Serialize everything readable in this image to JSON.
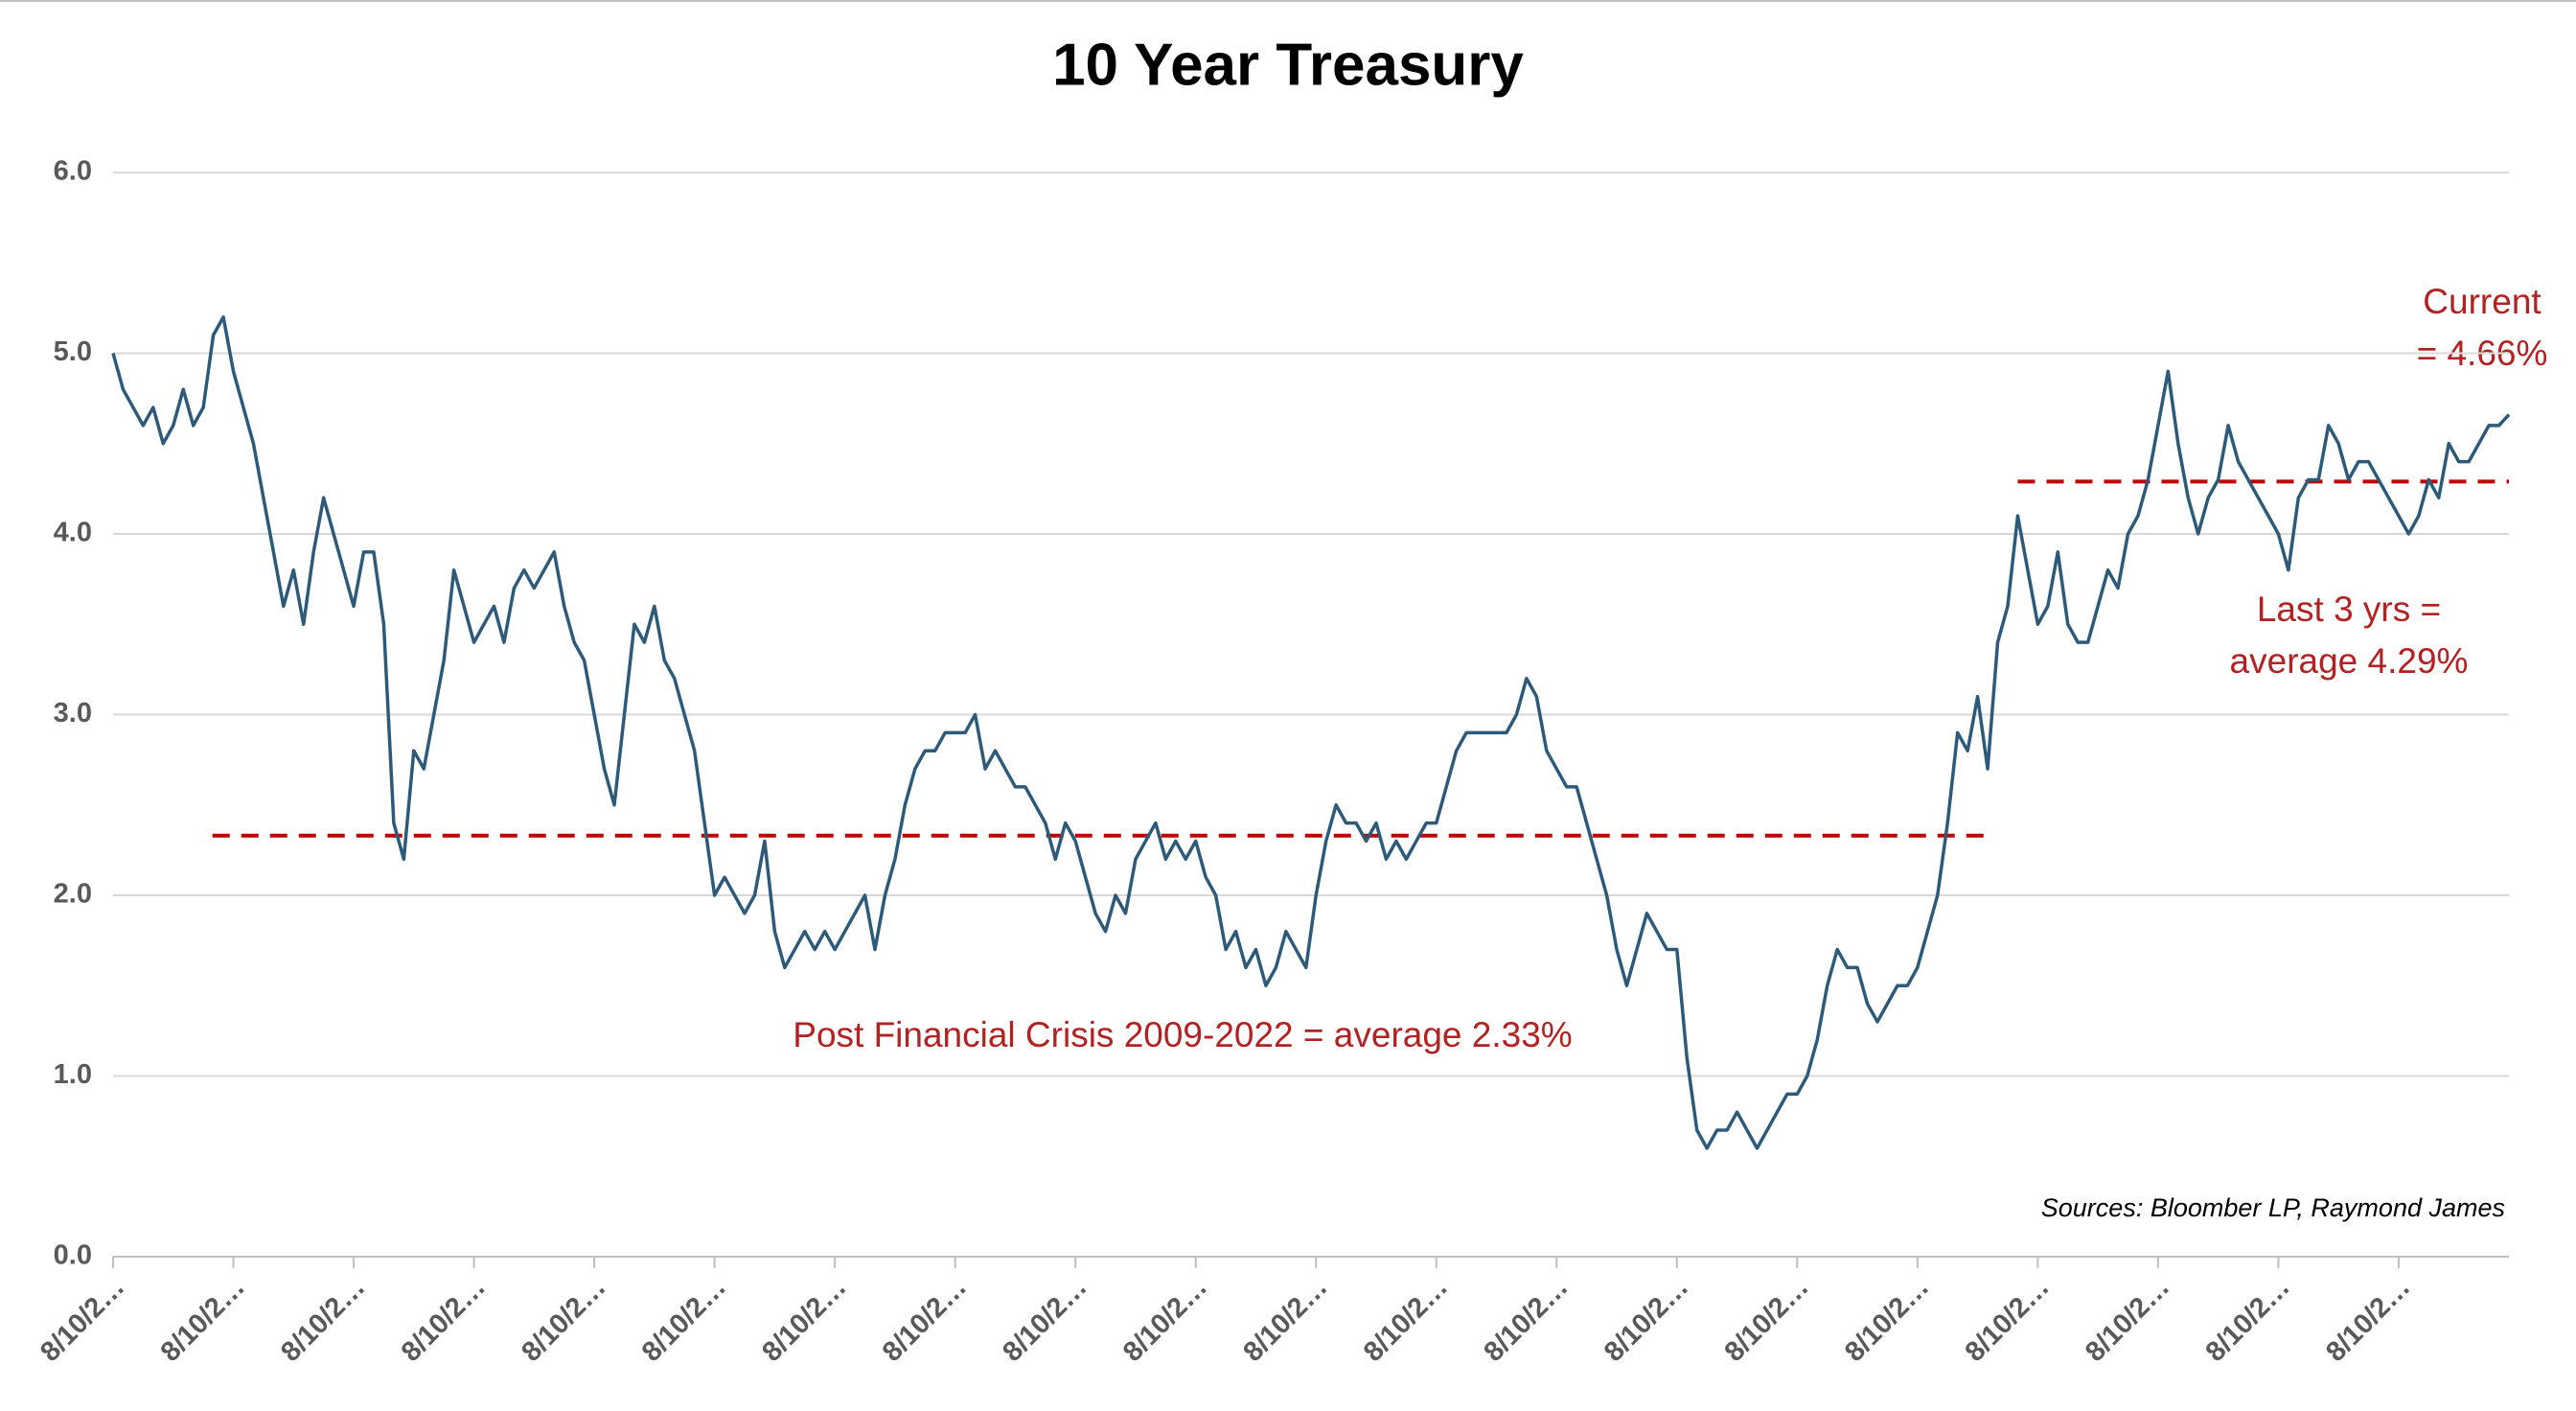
{
  "chart_data": {
    "type": "line",
    "title": "10 Year Treasury",
    "categories": [
      "8/10/2…",
      null,
      null,
      null,
      null,
      null,
      null,
      null,
      null,
      null,
      null,
      null,
      "8/10/2…",
      null,
      null,
      null,
      null,
      null,
      null,
      null,
      null,
      null,
      null,
      null,
      "8/10/2…",
      null,
      null,
      null,
      null,
      null,
      null,
      null,
      null,
      null,
      null,
      null,
      "8/10/2…",
      null,
      null,
      null,
      null,
      null,
      null,
      null,
      null,
      null,
      null,
      null,
      "8/10/2…",
      null,
      null,
      null,
      null,
      null,
      null,
      null,
      null,
      null,
      null,
      null,
      "8/10/2…",
      null,
      null,
      null,
      null,
      null,
      null,
      null,
      null,
      null,
      null,
      null,
      "8/10/2…",
      null,
      null,
      null,
      null,
      null,
      null,
      null,
      null,
      null,
      null,
      null,
      "8/10/2…",
      null,
      null,
      null,
      null,
      null,
      null,
      null,
      null,
      null,
      null,
      null,
      "8/10/2…",
      null,
      null,
      null,
      null,
      null,
      null,
      null,
      null,
      null,
      null,
      null,
      "8/10/2…",
      null,
      null,
      null,
      null,
      null,
      null,
      null,
      null,
      null,
      null,
      null,
      "8/10/2…",
      null,
      null,
      null,
      null,
      null,
      null,
      null,
      null,
      null,
      null,
      null,
      "8/10/2…",
      null,
      null,
      null,
      null,
      null,
      null,
      null,
      null,
      null,
      null,
      null,
      "8/10/2…",
      null,
      null,
      null,
      null,
      null,
      null,
      null,
      null,
      null,
      null,
      null,
      "8/10/2…",
      null,
      null,
      null,
      null,
      null,
      null,
      null,
      null,
      null,
      null,
      null,
      "8/10/2…",
      null,
      null,
      null,
      null,
      null,
      null,
      null,
      null,
      null,
      null,
      null,
      "8/10/2…",
      null,
      null,
      null,
      null,
      null,
      null,
      null,
      null,
      null,
      null,
      null,
      "8/10/2…",
      null,
      null,
      null,
      null,
      null,
      null,
      null,
      null,
      null,
      null,
      null,
      "8/10/2…",
      null,
      null,
      null,
      null,
      null,
      null,
      null,
      null,
      null,
      null,
      null,
      "8/10/2…",
      null,
      null,
      null,
      null,
      null,
      null,
      null,
      null,
      null,
      null,
      null,
      "8/10/2…",
      null,
      null,
      null,
      null,
      null,
      null,
      null,
      null,
      null,
      null,
      null
    ],
    "series": [
      {
        "name": "10 Year Treasury",
        "color": "#2e5a7a",
        "values": [
          5.0,
          4.8,
          4.7,
          4.6,
          4.7,
          4.5,
          4.6,
          4.8,
          4.6,
          4.7,
          5.1,
          5.2,
          4.9,
          4.7,
          4.5,
          4.2,
          3.9,
          3.6,
          3.8,
          3.5,
          3.9,
          4.2,
          4.0,
          3.8,
          3.6,
          3.9,
          3.9,
          3.5,
          2.4,
          2.2,
          2.8,
          2.7,
          3.0,
          3.3,
          3.8,
          3.6,
          3.4,
          3.5,
          3.6,
          3.4,
          3.7,
          3.8,
          3.7,
          3.8,
          3.9,
          3.6,
          3.4,
          3.3,
          3.0,
          2.7,
          2.5,
          3.0,
          3.5,
          3.4,
          3.6,
          3.3,
          3.2,
          3.0,
          2.8,
          2.4,
          2.0,
          2.1,
          2.0,
          1.9,
          2.0,
          2.3,
          1.8,
          1.6,
          1.7,
          1.8,
          1.7,
          1.8,
          1.7,
          1.8,
          1.9,
          2.0,
          1.7,
          2.0,
          2.2,
          2.5,
          2.7,
          2.8,
          2.8,
          2.9,
          2.9,
          2.9,
          3.0,
          2.7,
          2.8,
          2.7,
          2.6,
          2.6,
          2.5,
          2.4,
          2.2,
          2.4,
          2.3,
          2.1,
          1.9,
          1.8,
          2.0,
          1.9,
          2.2,
          2.3,
          2.4,
          2.2,
          2.3,
          2.2,
          2.3,
          2.1,
          2.0,
          1.7,
          1.8,
          1.6,
          1.7,
          1.5,
          1.6,
          1.8,
          1.7,
          1.6,
          2.0,
          2.3,
          2.5,
          2.4,
          2.4,
          2.3,
          2.4,
          2.2,
          2.3,
          2.2,
          2.3,
          2.4,
          2.4,
          2.6,
          2.8,
          2.9,
          2.9,
          2.9,
          2.9,
          2.9,
          3.0,
          3.2,
          3.1,
          2.8,
          2.7,
          2.6,
          2.6,
          2.4,
          2.2,
          2.0,
          1.7,
          1.5,
          1.7,
          1.9,
          1.8,
          1.7,
          1.7,
          1.1,
          0.7,
          0.6,
          0.7,
          0.7,
          0.8,
          0.7,
          0.6,
          0.7,
          0.8,
          0.9,
          0.9,
          1.0,
          1.2,
          1.5,
          1.7,
          1.6,
          1.6,
          1.4,
          1.3,
          1.4,
          1.5,
          1.5,
          1.6,
          1.8,
          2.0,
          2.4,
          2.9,
          2.8,
          3.1,
          2.7,
          3.4,
          3.6,
          4.1,
          3.8,
          3.5,
          3.6,
          3.9,
          3.5,
          3.4,
          3.4,
          3.6,
          3.8,
          3.7,
          4.0,
          4.1,
          4.3,
          4.6,
          4.9,
          4.5,
          4.2,
          4.0,
          4.2,
          4.3,
          4.6,
          4.4,
          4.3,
          4.2,
          4.1,
          4.0,
          3.8,
          4.2,
          4.3,
          4.3,
          4.6,
          4.5,
          4.3,
          4.4,
          4.4,
          4.3,
          4.2,
          4.1,
          4.0,
          4.1,
          4.3,
          4.2,
          4.5,
          4.4,
          4.4,
          4.5,
          4.6,
          4.6,
          4.66
        ]
      }
    ],
    "ylim": [
      0,
      6
    ],
    "yticks": [
      {
        "value": 0,
        "label": "0.0"
      },
      {
        "value": 1,
        "label": "1.0"
      },
      {
        "value": 2,
        "label": "2.0"
      },
      {
        "value": 3,
        "label": "3.0"
      },
      {
        "value": 4,
        "label": "4.0"
      },
      {
        "value": 5,
        "label": "5.0"
      },
      {
        "value": 6,
        "label": "6.0"
      }
    ],
    "grid": true,
    "reference_lines": [
      {
        "value": 2.33,
        "color": "#c00000"
      },
      {
        "value": 4.29,
        "color": "#c00000"
      }
    ],
    "annotations": [
      "Post Financial Crisis 2009-2022 = average 2.33%",
      "Current",
      "= 4.66%",
      "Last 3 yrs =",
      "average 4.29%"
    ],
    "source": "Sources: Bloomber LP, Raymond James"
  }
}
